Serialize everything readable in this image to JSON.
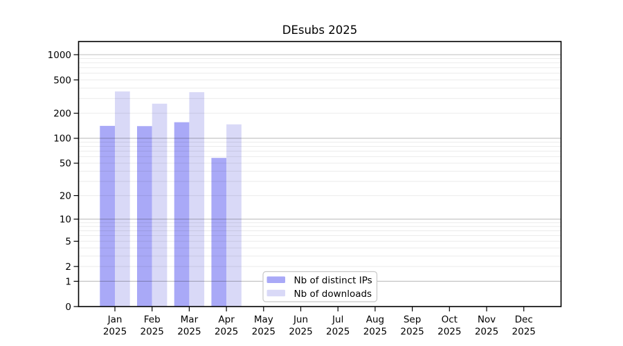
{
  "chart_data": {
    "type": "bar",
    "title": "DEsubs 2025",
    "y_scale": "log10(1+v)",
    "ylim": [
      0,
      1435
    ],
    "grid": true,
    "legend_position": "bottom-center",
    "y_ticks": [
      0,
      1,
      2,
      5,
      10,
      20,
      50,
      100,
      200,
      500,
      1000
    ],
    "categories": [
      "Jan",
      "Feb",
      "Mar",
      "Apr",
      "May",
      "Jun",
      "Jul",
      "Aug",
      "Sep",
      "Oct",
      "Nov",
      "Dec"
    ],
    "year_label": "2025",
    "series": [
      {
        "name": "Nb of distinct IPs",
        "color": "#a9a9f7",
        "values": [
          141,
          140,
          156,
          58,
          null,
          null,
          null,
          null,
          null,
          null,
          null,
          null
        ]
      },
      {
        "name": "Nb of downloads",
        "color": "#d9d9f7",
        "values": [
          364,
          260,
          357,
          147,
          null,
          null,
          null,
          null,
          null,
          null,
          null,
          null
        ]
      }
    ]
  },
  "colors": {
    "background": "#ffffff",
    "axis": "#000000",
    "major_grid": "rgba(0,0,0,0.25)",
    "minor_grid": "rgba(0,0,0,0.08)",
    "legend_border": "#c8c8c8",
    "legend_bg": "#ffffff"
  }
}
